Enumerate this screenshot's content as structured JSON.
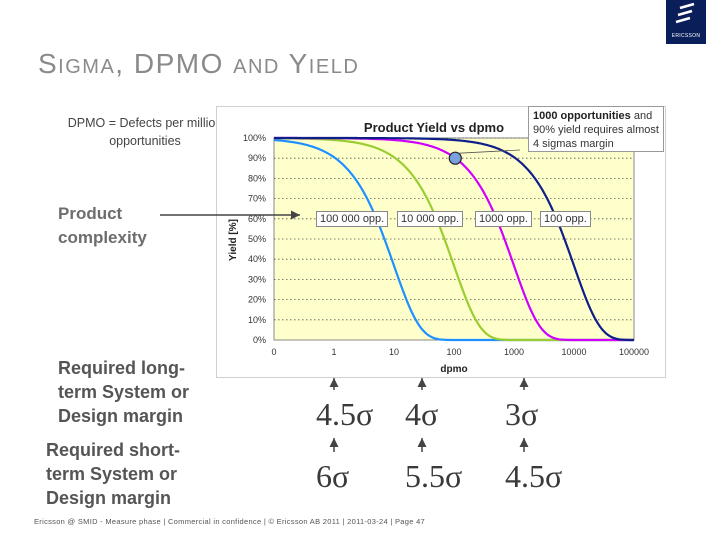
{
  "page": {
    "title": "Sigma, DPMO and Yield",
    "dpmo_definition": "DPMO = Defects per million opportunities",
    "product_complexity": "Product complexity",
    "required_long_term": "Required long-term System or Design margin",
    "required_short_term": "Required short-term System or Design margin",
    "footer": "Ericsson @ SMID - Measure phase  |  Commercial in confidence  |  © Ericsson AB 2011  |  2011-03-24  |  Page 47",
    "logo_text": "ERICSSON",
    "callout_bold": "1000 opportunities",
    "callout_rest": " and 90% yield requires almost 4 sigmas margin",
    "long_term_sigmas": [
      "4.5σ",
      "4σ",
      "3σ"
    ],
    "short_term_sigmas": [
      "6σ",
      "5.5σ",
      "4.5σ"
    ]
  },
  "colors": {
    "plot_bg": "#ffffcc",
    "navy": "#0a1f5a",
    "curve1": "#1e90ff",
    "curve2": "#9acd32",
    "curve3": "#d000ff",
    "curve4": "#0f1f8a"
  },
  "chart_data": {
    "type": "line",
    "title": "Product Yield vs dpmo",
    "xlabel": "dpmo",
    "ylabel": "Yield [%]",
    "x_scale": "log",
    "x_ticks": [
      "0",
      "1",
      "10",
      "100",
      "1000",
      "10000",
      "100000"
    ],
    "y_ticks": [
      "0%",
      "10%",
      "20%",
      "30%",
      "40%",
      "50%",
      "60%",
      "70%",
      "80%",
      "90%",
      "100%"
    ],
    "ylim": [
      0,
      100
    ],
    "reference_line_yield": 90,
    "highlight_point": {
      "dpmo": 105,
      "yield": 90,
      "series": "1000 opp."
    },
    "series": [
      {
        "name": "100 000 opp.",
        "opportunities": 100000
      },
      {
        "name": "10 000 opp.",
        "opportunities": 10000
      },
      {
        "name": "1000 opp.",
        "opportunities": 1000
      },
      {
        "name": "100 opp.",
        "opportunities": 100
      }
    ]
  }
}
